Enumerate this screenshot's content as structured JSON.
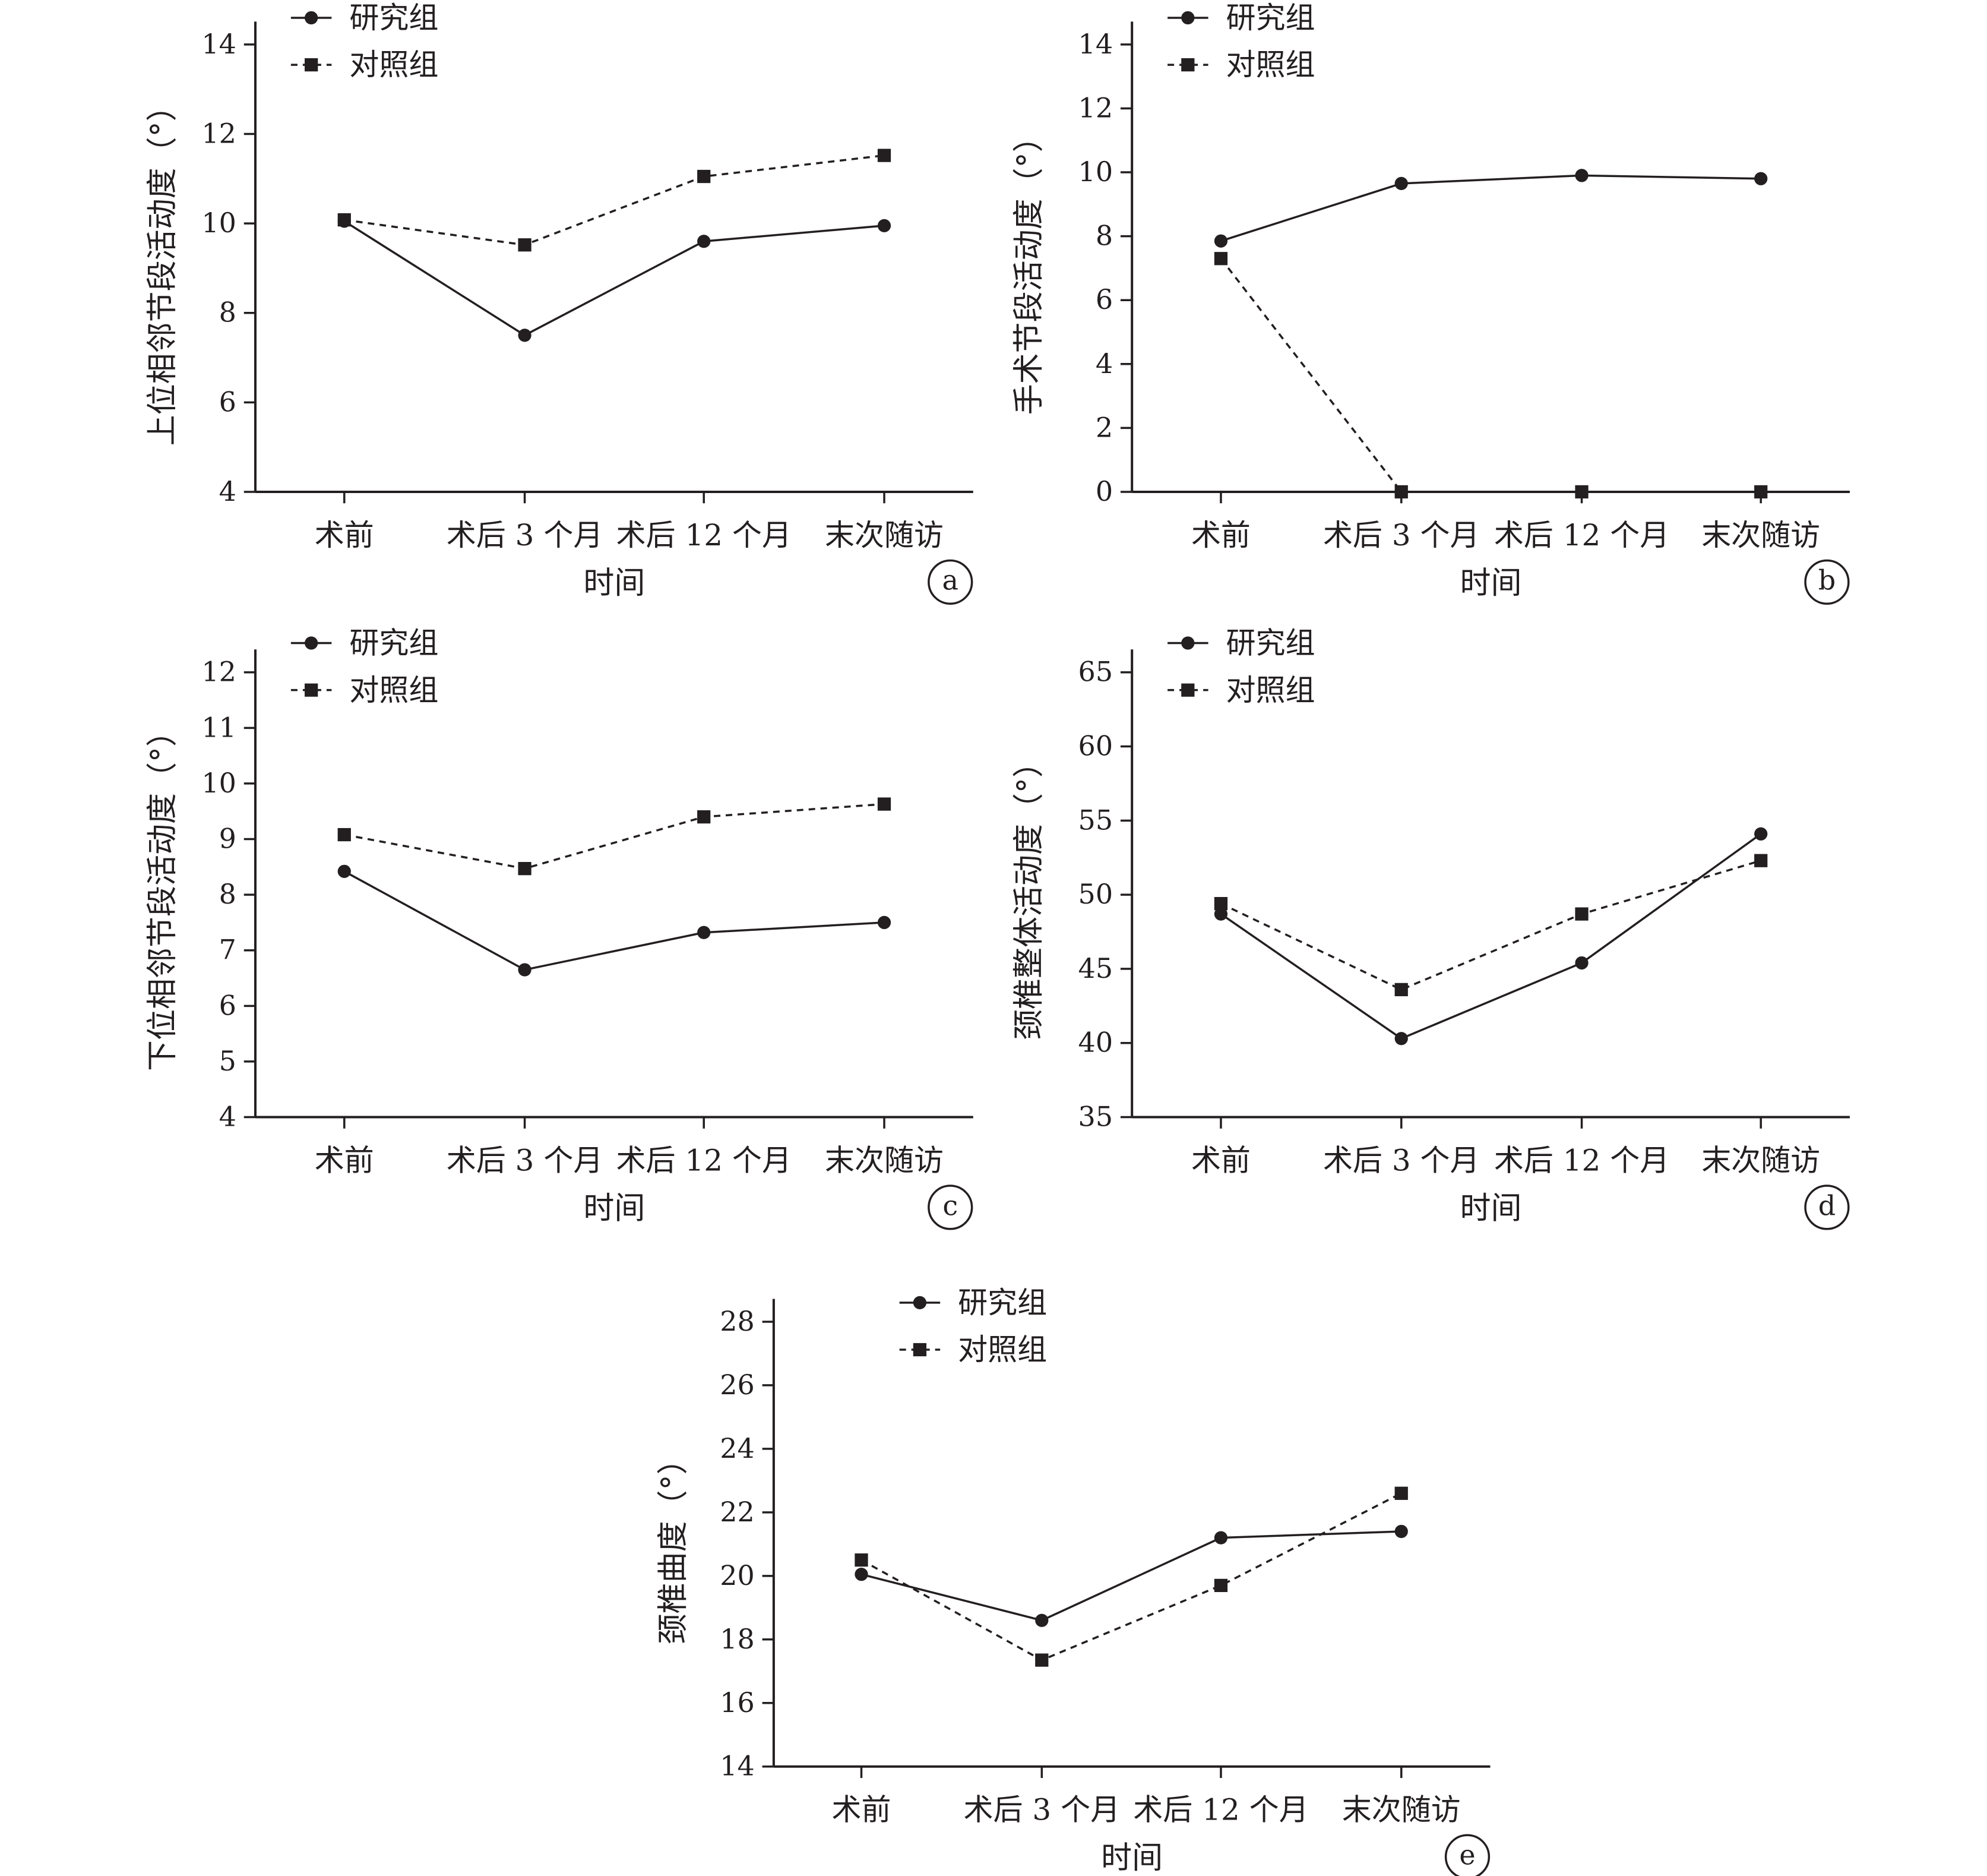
{
  "chart_data": [
    {
      "type": "line",
      "panel": "a",
      "categories": [
        "术前",
        "术后 3 个月",
        "术后 12 个月",
        "末次随访"
      ],
      "xlabel": "时间",
      "ylabel": "上位相邻节段活动度（°）",
      "ylim": [
        4,
        14
      ],
      "yticks": [
        4,
        6,
        8,
        10,
        12,
        14
      ],
      "series": [
        {
          "name": "研究组",
          "marker": "circle",
          "line": "solid",
          "values": [
            10.05,
            7.5,
            9.6,
            9.95
          ]
        },
        {
          "name": "对照组",
          "marker": "square",
          "line": "dashed",
          "values": [
            10.08,
            9.52,
            11.05,
            11.52
          ]
        }
      ]
    },
    {
      "type": "line",
      "panel": "b",
      "categories": [
        "术前",
        "术后 3 个月",
        "术后 12 个月",
        "末次随访"
      ],
      "xlabel": "时间",
      "ylabel": "手术节段活动度（°）",
      "ylim": [
        0,
        14
      ],
      "yticks": [
        0,
        2,
        4,
        6,
        8,
        10,
        12,
        14
      ],
      "series": [
        {
          "name": "研究组",
          "marker": "circle",
          "line": "solid",
          "values": [
            7.85,
            9.65,
            9.9,
            9.8
          ]
        },
        {
          "name": "对照组",
          "marker": "square",
          "line": "dashed",
          "values": [
            7.3,
            0,
            0,
            0
          ]
        }
      ]
    },
    {
      "type": "line",
      "panel": "c",
      "categories": [
        "术前",
        "术后 3 个月",
        "术后 12 个月",
        "末次随访"
      ],
      "xlabel": "时间",
      "ylabel": "下位相邻节段活动度（°）",
      "ylim": [
        4,
        12
      ],
      "yticks": [
        4,
        5,
        6,
        7,
        8,
        9,
        10,
        11,
        12
      ],
      "series": [
        {
          "name": "研究组",
          "marker": "circle",
          "line": "solid",
          "values": [
            8.42,
            6.65,
            7.32,
            7.5
          ]
        },
        {
          "name": "对照组",
          "marker": "square",
          "line": "dashed",
          "values": [
            9.08,
            8.47,
            9.4,
            9.63
          ]
        }
      ]
    },
    {
      "type": "line",
      "panel": "d",
      "categories": [
        "术前",
        "术后 3 个月",
        "术后 12 个月",
        "末次随访"
      ],
      "xlabel": "时间",
      "ylabel": "颈椎整体活动度（°）",
      "ylim": [
        35,
        65
      ],
      "yticks": [
        35,
        40,
        45,
        50,
        55,
        60,
        65
      ],
      "series": [
        {
          "name": "研究组",
          "marker": "circle",
          "line": "solid",
          "values": [
            48.7,
            40.3,
            45.4,
            54.1
          ]
        },
        {
          "name": "对照组",
          "marker": "square",
          "line": "dashed",
          "values": [
            49.4,
            43.6,
            48.7,
            52.3
          ]
        }
      ]
    },
    {
      "type": "line",
      "panel": "e",
      "categories": [
        "术前",
        "术后 3 个月",
        "术后 12 个月",
        "末次随访"
      ],
      "xlabel": "时间",
      "ylabel": "颈椎曲度（°）",
      "ylim": [
        14,
        28
      ],
      "yticks": [
        14,
        16,
        18,
        20,
        22,
        24,
        26,
        28
      ],
      "series": [
        {
          "name": "研究组",
          "marker": "circle",
          "line": "solid",
          "values": [
            20.05,
            18.6,
            21.2,
            21.4
          ]
        },
        {
          "name": "对照组",
          "marker": "square",
          "line": "dashed",
          "values": [
            20.5,
            17.35,
            19.7,
            22.6
          ]
        }
      ]
    }
  ]
}
